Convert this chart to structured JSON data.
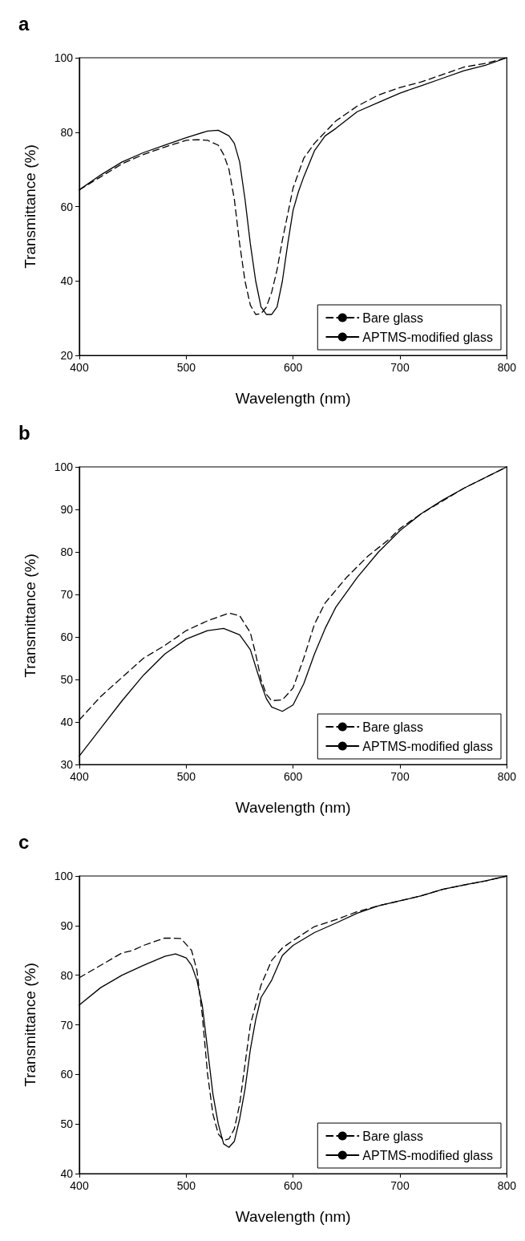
{
  "chart_data": [
    {
      "type": "line",
      "title": "a",
      "xlabel": "Wavelength (nm)",
      "ylabel": "Transmittance (%)",
      "xlim": [
        400,
        800
      ],
      "xticks": [
        400,
        500,
        600,
        700,
        800
      ],
      "ylim": [
        20,
        100
      ],
      "yticks": [
        20,
        40,
        60,
        80,
        100
      ],
      "grid": false,
      "legend": "bottom right",
      "marker": "none",
      "series": [
        {
          "name": "Bare glass",
          "color": "#000000",
          "line_style": "dashed",
          "x": [
            400,
            420,
            440,
            460,
            480,
            500,
            510,
            520,
            530,
            535,
            540,
            545,
            550,
            555,
            560,
            565,
            570,
            575,
            580,
            585,
            590,
            595,
            600,
            610,
            620,
            640,
            660,
            680,
            700,
            720,
            740,
            760,
            780,
            800
          ],
          "values": [
            64.5,
            68,
            71.5,
            74,
            76,
            77.8,
            78,
            77.8,
            76.5,
            74,
            70,
            62,
            50,
            40,
            33.5,
            31,
            31.2,
            33,
            37,
            43,
            51,
            58,
            65,
            73,
            77,
            83,
            87,
            90,
            92,
            93.5,
            95.5,
            97.5,
            98.5,
            100
          ]
        },
        {
          "name": "APTMS-modified glass",
          "color": "#000000",
          "line_style": "solid",
          "x": [
            400,
            420,
            440,
            460,
            480,
            500,
            520,
            530,
            540,
            545,
            550,
            555,
            560,
            565,
            570,
            575,
            580,
            585,
            590,
            595,
            600,
            605,
            610,
            620,
            630,
            640,
            660,
            680,
            700,
            720,
            740,
            760,
            780,
            800
          ],
          "values": [
            64.5,
            68.5,
            72,
            74.5,
            76.5,
            78.5,
            80.3,
            80.5,
            79,
            77,
            72,
            62,
            50,
            40,
            33,
            31,
            31,
            33,
            40,
            50,
            59,
            64,
            68,
            75,
            79,
            81,
            85.5,
            88,
            90.5,
            92.5,
            94.5,
            96.5,
            98,
            100
          ]
        }
      ]
    },
    {
      "type": "line",
      "title": "b",
      "xlabel": "Wavelength (nm)",
      "ylabel": "Transmittance (%)",
      "xlim": [
        400,
        800
      ],
      "xticks": [
        400,
        500,
        600,
        700,
        800
      ],
      "ylim": [
        30,
        100
      ],
      "yticks": [
        30,
        40,
        50,
        60,
        70,
        80,
        90,
        100
      ],
      "grid": false,
      "legend": "bottom right",
      "marker": "none",
      "series": [
        {
          "name": "Bare glass",
          "color": "#000000",
          "line_style": "dashed",
          "x": [
            400,
            420,
            440,
            460,
            480,
            500,
            520,
            540,
            550,
            560,
            565,
            570,
            575,
            580,
            590,
            600,
            610,
            620,
            630,
            650,
            670,
            690,
            700,
            720,
            740,
            760,
            780,
            800
          ],
          "values": [
            40.5,
            46,
            50.5,
            55,
            58,
            61.5,
            63.8,
            65.6,
            65,
            61,
            56,
            50,
            46.5,
            45,
            45.2,
            48,
            55,
            63,
            68,
            74,
            79,
            83,
            85.5,
            89,
            92,
            95,
            97.5,
            100
          ]
        },
        {
          "name": "APTMS-modified glass",
          "color": "#000000",
          "line_style": "solid",
          "x": [
            400,
            420,
            440,
            460,
            480,
            500,
            520,
            535,
            550,
            560,
            570,
            575,
            580,
            590,
            600,
            610,
            620,
            630,
            640,
            660,
            680,
            700,
            720,
            740,
            760,
            780,
            800
          ],
          "values": [
            32,
            38.5,
            45,
            51,
            56,
            59.5,
            61.5,
            62,
            60.5,
            57,
            49,
            45.5,
            43.5,
            42.5,
            44,
            49,
            56,
            62,
            67,
            74,
            80,
            85,
            89,
            92.2,
            95,
            97.5,
            100
          ]
        }
      ]
    },
    {
      "type": "line",
      "title": "c",
      "xlabel": "Wavelength (nm)",
      "ylabel": "Transmittance (%)",
      "xlim": [
        400,
        800
      ],
      "xticks": [
        400,
        500,
        600,
        700,
        800
      ],
      "ylim": [
        40,
        100
      ],
      "yticks": [
        40,
        50,
        60,
        70,
        80,
        90,
        100
      ],
      "grid": false,
      "legend": "bottom right",
      "marker": "none",
      "series": [
        {
          "name": "Bare glass",
          "color": "#000000",
          "line_style": "dashed",
          "x": [
            400,
            420,
            440,
            450,
            460,
            480,
            495,
            505,
            510,
            515,
            520,
            525,
            530,
            535,
            540,
            545,
            550,
            555,
            560,
            570,
            580,
            590,
            600,
            620,
            640,
            660,
            680,
            700,
            720,
            740,
            760,
            780,
            800
          ],
          "values": [
            79.5,
            82,
            84.5,
            85,
            86,
            87.5,
            87.4,
            85,
            81,
            72,
            60,
            52,
            48,
            46.7,
            47,
            49,
            54,
            62,
            70,
            78,
            83,
            85.5,
            87,
            89.8,
            91.2,
            92.8,
            94,
            95,
            96,
            97.3,
            98.2,
            99,
            100
          ]
        },
        {
          "name": "APTMS-modified glass",
          "color": "#000000",
          "line_style": "solid",
          "x": [
            400,
            420,
            440,
            460,
            480,
            490,
            500,
            505,
            510,
            515,
            520,
            525,
            530,
            535,
            540,
            545,
            550,
            555,
            560,
            565,
            570,
            580,
            590,
            600,
            620,
            640,
            660,
            680,
            700,
            720,
            740,
            760,
            780,
            800
          ],
          "values": [
            74,
            77.5,
            80,
            82,
            83.8,
            84.3,
            83.5,
            82,
            79,
            74,
            65,
            56,
            50,
            46,
            45.3,
            46.5,
            51,
            57,
            65,
            71,
            75.5,
            79,
            84,
            86,
            88.6,
            90.5,
            92.5,
            94,
            95,
            96,
            97.3,
            98.2,
            99,
            100
          ]
        }
      ]
    }
  ]
}
